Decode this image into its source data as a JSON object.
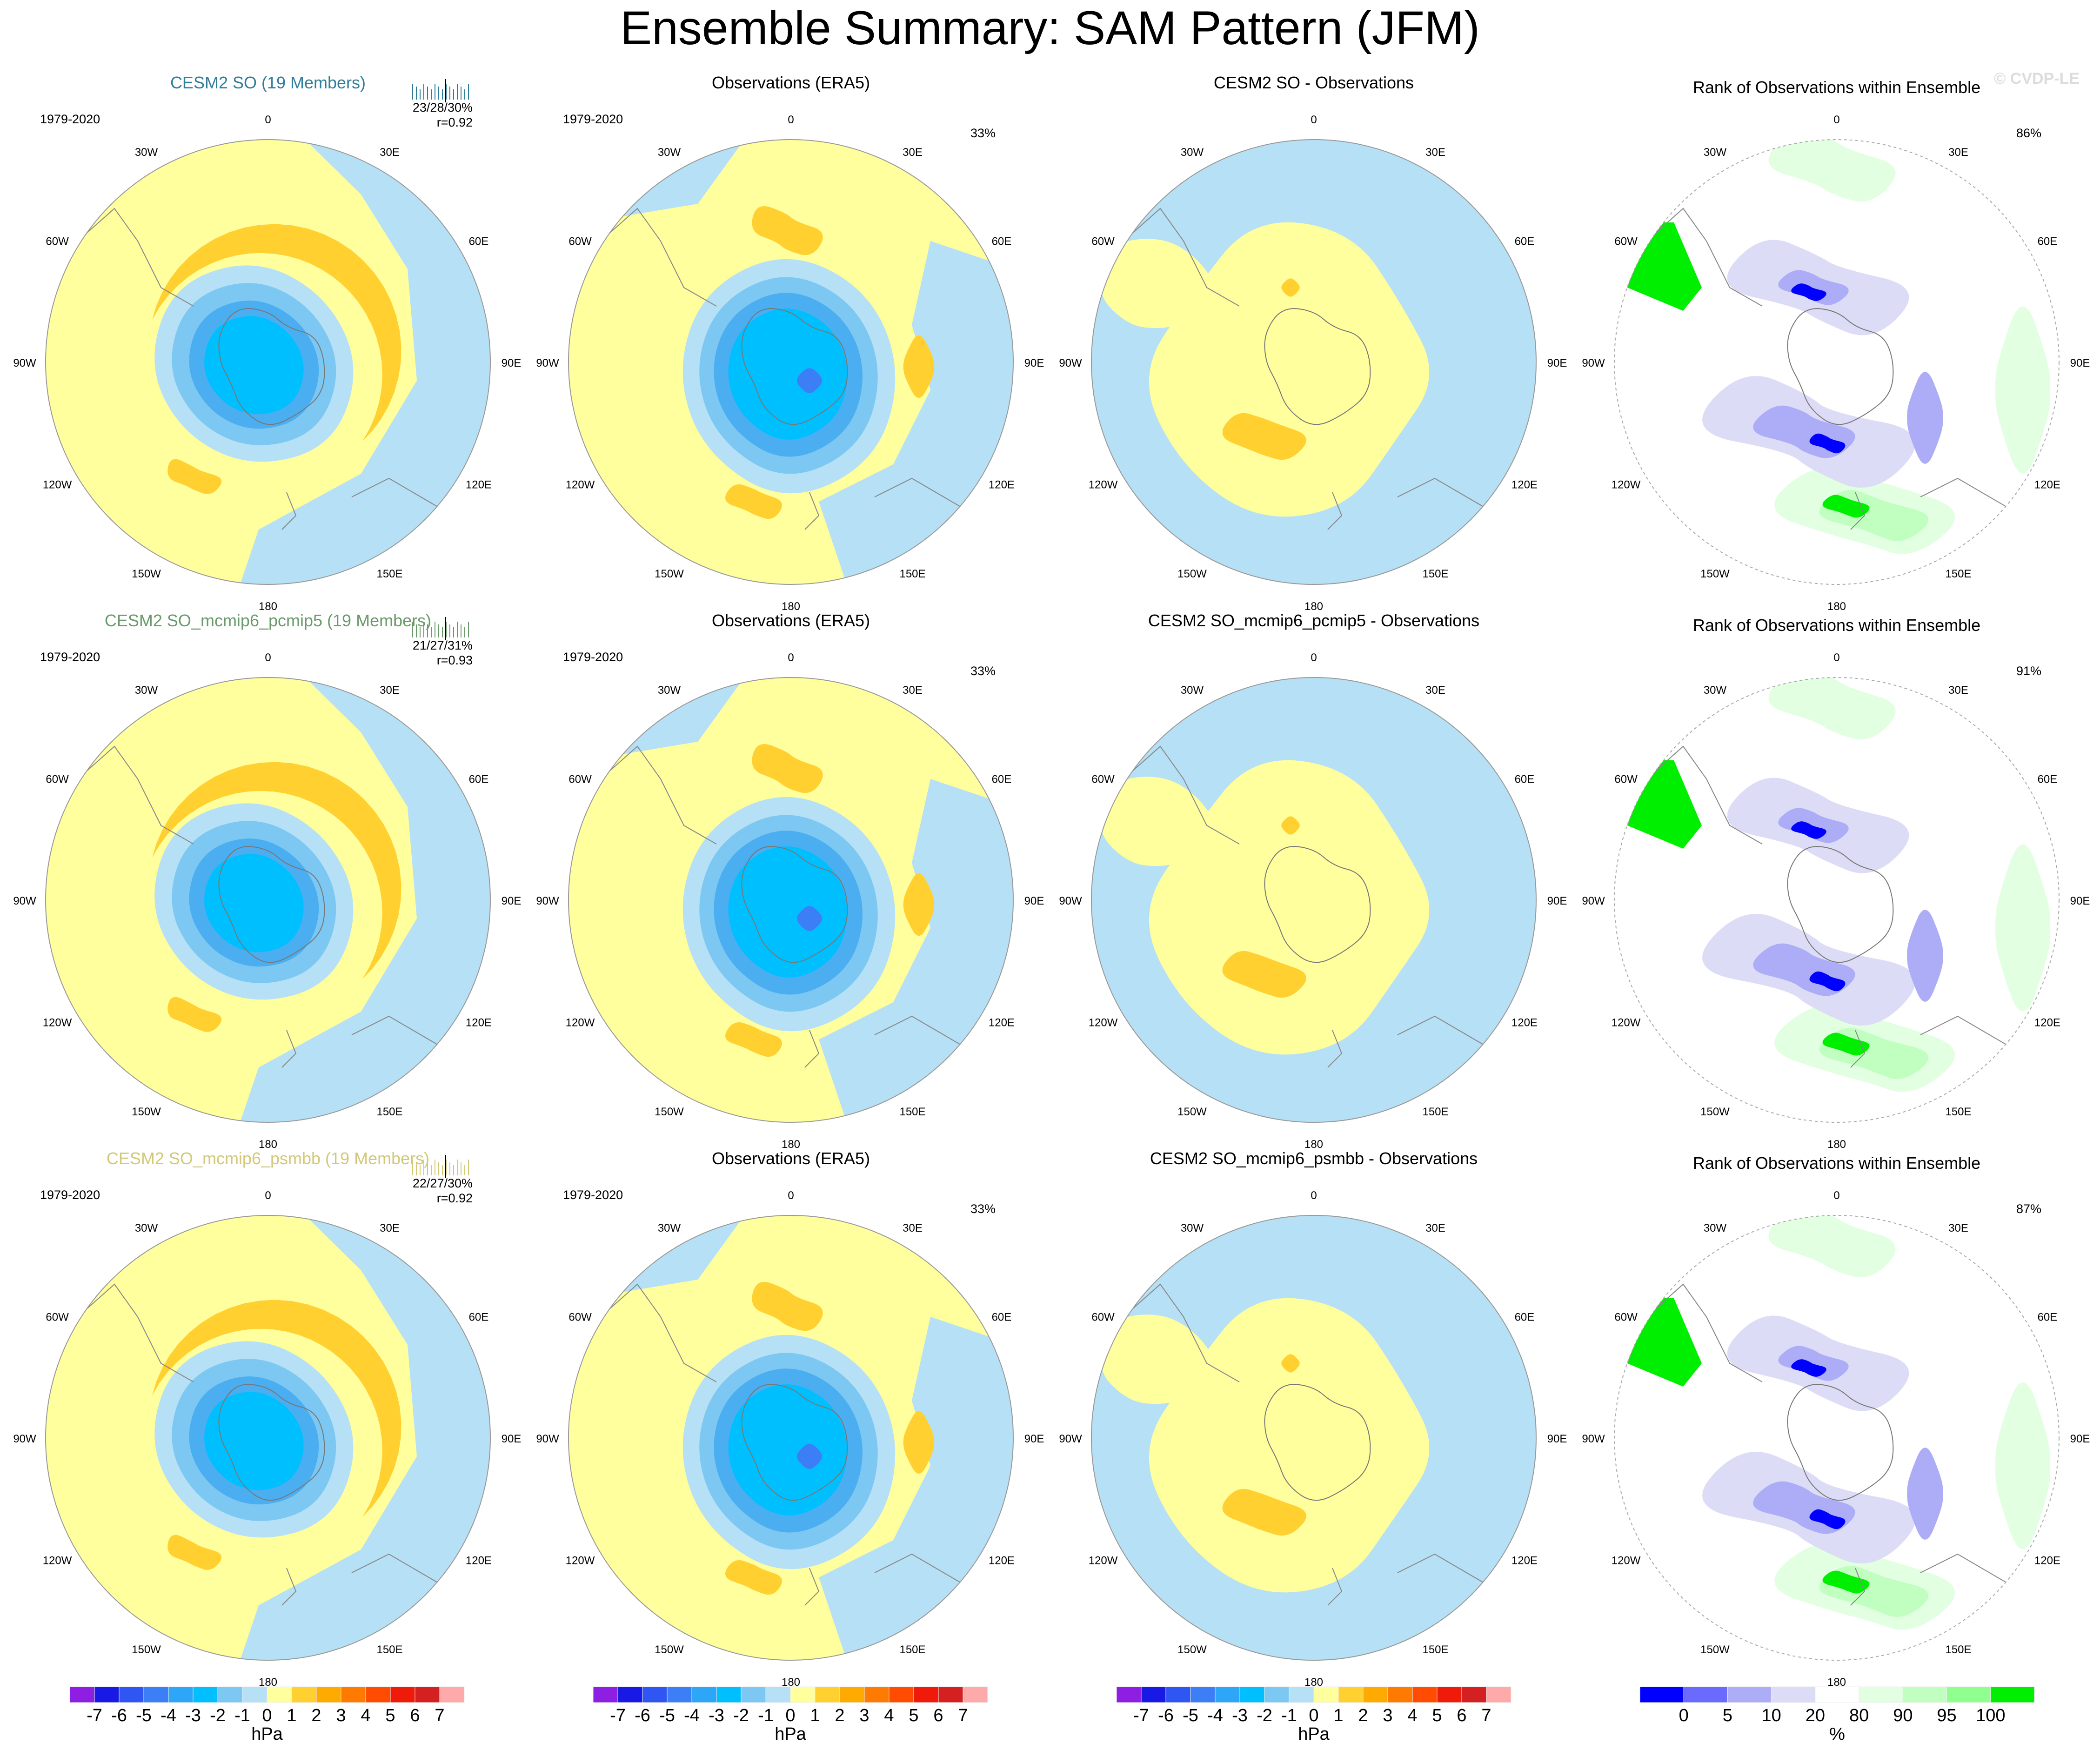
{
  "title": "Ensemble Summary: SAM Pattern (JFM)",
  "watermark": "© CVDP-LE",
  "lon_labels": [
    "0",
    "30E",
    "60E",
    "90E",
    "120E",
    "150E",
    "180",
    "150W",
    "120W",
    "90W",
    "60W",
    "30W"
  ],
  "colors": {
    "hpa": [
      "#8f1ee3",
      "#1919e6",
      "#2f55f2",
      "#3c7ef5",
      "#2ea6f7",
      "#00bfff",
      "#7cc8f2",
      "#b6e0f5",
      "#ffff9e",
      "#ffd030",
      "#ffaa00",
      "#ff7a00",
      "#ff4c00",
      "#f01a0a",
      "#d42020",
      "#ffaaaa"
    ],
    "rank": [
      "#0000ff",
      "#6a6aff",
      "#acacf7",
      "#dcdcf7",
      "#ffffff",
      "#e2ffe2",
      "#c0ffc0",
      "#8fff8f",
      "#00ee00"
    ],
    "neg1": "#b6e0f5",
    "neg2": "#7cc8f2",
    "neg3": "#4aaef0",
    "neg4": "#00bfff",
    "neg5": "#3c7ef5",
    "pos1": "#ffff9e",
    "pos2": "#ffd030",
    "title_row1": "#2e7d9a",
    "title_row2": "#6a9a6a",
    "title_row3": "#d2c878"
  },
  "rows": [
    {
      "ens_title": "CESM2 SO (19 Members)",
      "ens_stats": "23/28/30%",
      "ens_r": "r=0.92",
      "period": "1979-2020",
      "obs_title": "Observations (ERA5)",
      "obs_period": "1979-2020",
      "obs_pct": "33%",
      "diff_title": "CESM2 SO - Observations",
      "rank_title": "Rank of Observations within Ensemble",
      "rank_pct": "86%"
    },
    {
      "ens_title": "CESM2 SO_mcmip6_pcmip5 (19 Members)",
      "ens_stats": "21/27/31%",
      "ens_r": "r=0.93",
      "period": "1979-2020",
      "obs_title": "Observations (ERA5)",
      "obs_period": "1979-2020",
      "obs_pct": "33%",
      "diff_title": "CESM2 SO_mcmip6_pcmip5 - Observations",
      "rank_title": "Rank of Observations within Ensemble",
      "rank_pct": "91%"
    },
    {
      "ens_title": "CESM2 SO_mcmip6_psmbb (19 Members)",
      "ens_stats": "22/27/30%",
      "ens_r": "r=0.92",
      "period": "1979-2020",
      "obs_title": "Observations (ERA5)",
      "obs_period": "1979-2020",
      "obs_pct": "33%",
      "diff_title": "CESM2 SO_mcmip6_psmbb - Observations",
      "rank_title": "Rank of Observations within Ensemble",
      "rank_pct": "87%"
    }
  ],
  "colorbars": [
    {
      "labels": [
        "-7",
        "-6",
        "-5",
        "-4",
        "-3",
        "-2",
        "-1",
        "0",
        "1",
        "2",
        "3",
        "4",
        "5",
        "6",
        "7"
      ],
      "unit": "hPa"
    },
    {
      "labels": [
        "-7",
        "-6",
        "-5",
        "-4",
        "-3",
        "-2",
        "-1",
        "0",
        "1",
        "2",
        "3",
        "4",
        "5",
        "6",
        "7"
      ],
      "unit": "hPa"
    },
    {
      "labels": [
        "-7",
        "-6",
        "-5",
        "-4",
        "-3",
        "-2",
        "-1",
        "0",
        "1",
        "2",
        "3",
        "4",
        "5",
        "6",
        "7"
      ],
      "unit": "hPa"
    },
    {
      "labels": [
        "0",
        "5",
        "10",
        "20",
        "80",
        "90",
        "95",
        "100"
      ],
      "unit": "%"
    }
  ],
  "chart_data": {
    "type": "heatmap",
    "title": "Ensemble Summary: SAM Pattern (JFM)",
    "projection": "south polar stereographic",
    "variable": "sea level pressure SAM regression",
    "units": "hPa",
    "contour_levels": [
      -7,
      -6,
      -5,
      -4,
      -3,
      -2,
      -1,
      0,
      1,
      2,
      3,
      4,
      5,
      6,
      7
    ],
    "rank_levels_percent": [
      0,
      5,
      10,
      20,
      80,
      90,
      95,
      100
    ],
    "panels": [
      {
        "row": 1,
        "col": 1,
        "name": "CESM2 SO (19 Members)",
        "period": "1979-2020",
        "stats": "23/28/30%",
        "r": 0.92
      },
      {
        "row": 1,
        "col": 2,
        "name": "Observations (ERA5)",
        "period": "1979-2020",
        "pct": 33
      },
      {
        "row": 1,
        "col": 3,
        "name": "CESM2 SO - Observations"
      },
      {
        "row": 1,
        "col": 4,
        "name": "Rank of Observations within Ensemble",
        "pct": 86
      },
      {
        "row": 2,
        "col": 1,
        "name": "CESM2 SO_mcmip6_pcmip5 (19 Members)",
        "period": "1979-2020",
        "stats": "21/27/31%",
        "r": 0.93
      },
      {
        "row": 2,
        "col": 2,
        "name": "Observations (ERA5)",
        "period": "1979-2020",
        "pct": 33
      },
      {
        "row": 2,
        "col": 3,
        "name": "CESM2 SO_mcmip6_pcmip5 - Observations"
      },
      {
        "row": 2,
        "col": 4,
        "name": "Rank of Observations within Ensemble",
        "pct": 91
      },
      {
        "row": 3,
        "col": 1,
        "name": "CESM2 SO_mcmip6_psmbb (19 Members)",
        "period": "1979-2020",
        "stats": "22/27/30%",
        "r": 0.92
      },
      {
        "row": 3,
        "col": 2,
        "name": "Observations (ERA5)",
        "period": "1979-2020",
        "pct": 33
      },
      {
        "row": 3,
        "col": 3,
        "name": "CESM2 SO_mcmip6_psmbb - Observations"
      },
      {
        "row": 3,
        "col": 4,
        "name": "Rank of Observations within Ensemble",
        "pct": 87
      }
    ]
  }
}
